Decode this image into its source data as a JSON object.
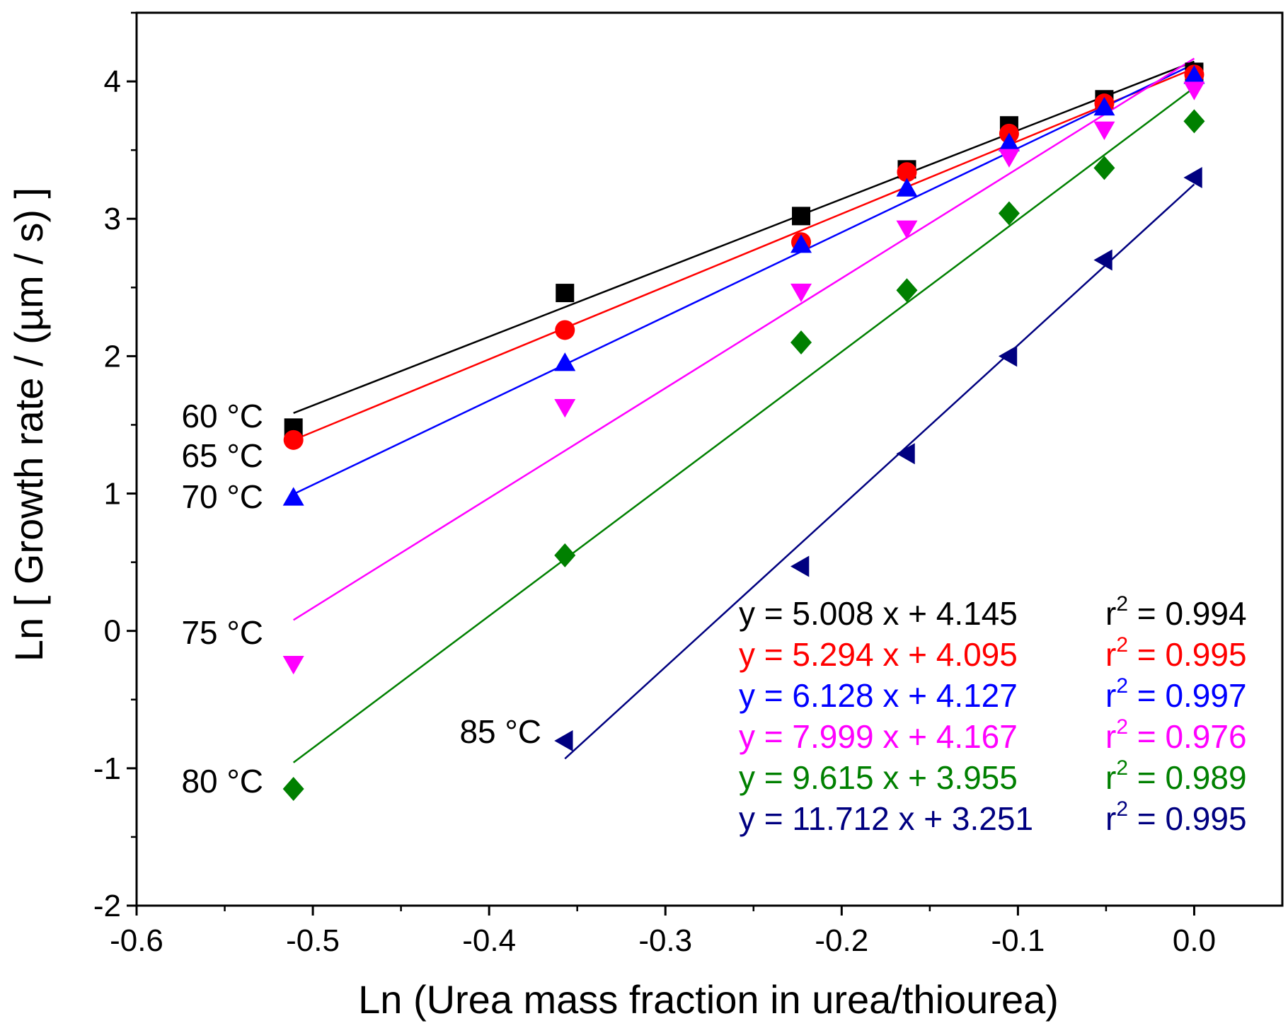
{
  "chart_data": {
    "type": "scatter",
    "title": "",
    "xlabel": "Ln (Urea mass fraction in urea/thiourea)",
    "ylabel": "Ln [ Growth rate / (µm / s) ]",
    "xlim": [
      -0.6,
      0.05
    ],
    "ylim": [
      -2,
      4.5
    ],
    "xticks": [
      -0.6,
      -0.5,
      -0.4,
      -0.3,
      -0.2,
      -0.1,
      0.0
    ],
    "xtick_labels": [
      "-0.6",
      "-0.5",
      "-0.4",
      "-0.3",
      "-0.2",
      "-0.1",
      "0.0"
    ],
    "yticks": [
      -2,
      -1,
      0,
      1,
      2,
      3,
      4
    ],
    "ytick_labels": [
      "-2",
      "-1",
      "0",
      "1",
      "2",
      "3",
      "4"
    ],
    "series": [
      {
        "name": "60 °C",
        "color": "#000000",
        "marker": "square",
        "x": [
          -0.511,
          -0.357,
          -0.223,
          -0.163,
          -0.105,
          -0.051,
          0.0
        ],
        "y": [
          1.48,
          2.46,
          3.02,
          3.36,
          3.68,
          3.87,
          4.07
        ],
        "fit": {
          "slope": 5.008,
          "intercept": 4.145,
          "x_range": [
            -0.511,
            0.0
          ]
        },
        "equation": "y = 5.008 x + 4.145",
        "r2_label": "r",
        "r2_sup": "2",
        "r2_value": " = 0.994"
      },
      {
        "name": "65 °C",
        "color": "#ff0000",
        "marker": "circle",
        "x": [
          -0.511,
          -0.357,
          -0.223,
          -0.163,
          -0.105,
          -0.051,
          0.0
        ],
        "y": [
          1.39,
          2.19,
          2.83,
          3.34,
          3.62,
          3.84,
          4.05
        ],
        "fit": {
          "slope": 5.294,
          "intercept": 4.095,
          "x_range": [
            -0.511,
            0.0
          ]
        },
        "equation": "y = 5.294 x + 4.095",
        "r2_label": "r",
        "r2_sup": "2",
        "r2_value": " = 0.995"
      },
      {
        "name": "70 °C",
        "color": "#0000ff",
        "marker": "triangle-up",
        "x": [
          -0.511,
          -0.357,
          -0.223,
          -0.163,
          -0.105,
          -0.051,
          0.0
        ],
        "y": [
          0.97,
          1.95,
          2.81,
          3.22,
          3.55,
          3.81,
          4.04
        ],
        "fit": {
          "slope": 6.128,
          "intercept": 4.127,
          "x_range": [
            -0.511,
            0.0
          ]
        },
        "equation": "y = 6.128 x + 4.127",
        "r2_label": "r",
        "r2_sup": "2",
        "r2_value": " = 0.997"
      },
      {
        "name": "75 °C",
        "color": "#ff00ff",
        "marker": "triangle-down",
        "x": [
          -0.511,
          -0.357,
          -0.223,
          -0.163,
          -0.105,
          -0.051,
          0.0
        ],
        "y": [
          -0.24,
          1.63,
          2.47,
          2.93,
          3.45,
          3.65,
          3.94
        ],
        "fit": {
          "slope": 7.999,
          "intercept": 4.167,
          "x_range": [
            -0.511,
            0.0
          ]
        },
        "equation": "y = 7.999 x + 4.167",
        "r2_label": "r",
        "r2_sup": "2",
        "r2_value": " = 0.976"
      },
      {
        "name": "80 °C",
        "color": "#008000",
        "marker": "diamond",
        "x": [
          -0.511,
          -0.357,
          -0.223,
          -0.163,
          -0.105,
          -0.051,
          0.0
        ],
        "y": [
          -1.15,
          0.55,
          2.1,
          2.48,
          3.04,
          3.37,
          3.71
        ],
        "fit": {
          "slope": 9.615,
          "intercept": 3.955,
          "x_range": [
            -0.511,
            0.0
          ]
        },
        "equation": "y = 9.615 x + 3.955",
        "r2_label": "r",
        "r2_sup": "2",
        "r2_value": " = 0.989"
      },
      {
        "name": "85 °C",
        "color": "#000080",
        "marker": "triangle-left",
        "x": [
          -0.357,
          -0.223,
          -0.163,
          -0.105,
          -0.051,
          0.0
        ],
        "y": [
          -0.8,
          0.47,
          1.29,
          2.0,
          2.7,
          3.3
        ],
        "fit": {
          "slope": 11.712,
          "intercept": 3.251,
          "x_range": [
            -0.357,
            0.0
          ]
        },
        "equation": "y = 11.712 x + 3.251",
        "r2_label": "r",
        "r2_sup": "2",
        "r2_value": " = 0.995"
      }
    ]
  }
}
